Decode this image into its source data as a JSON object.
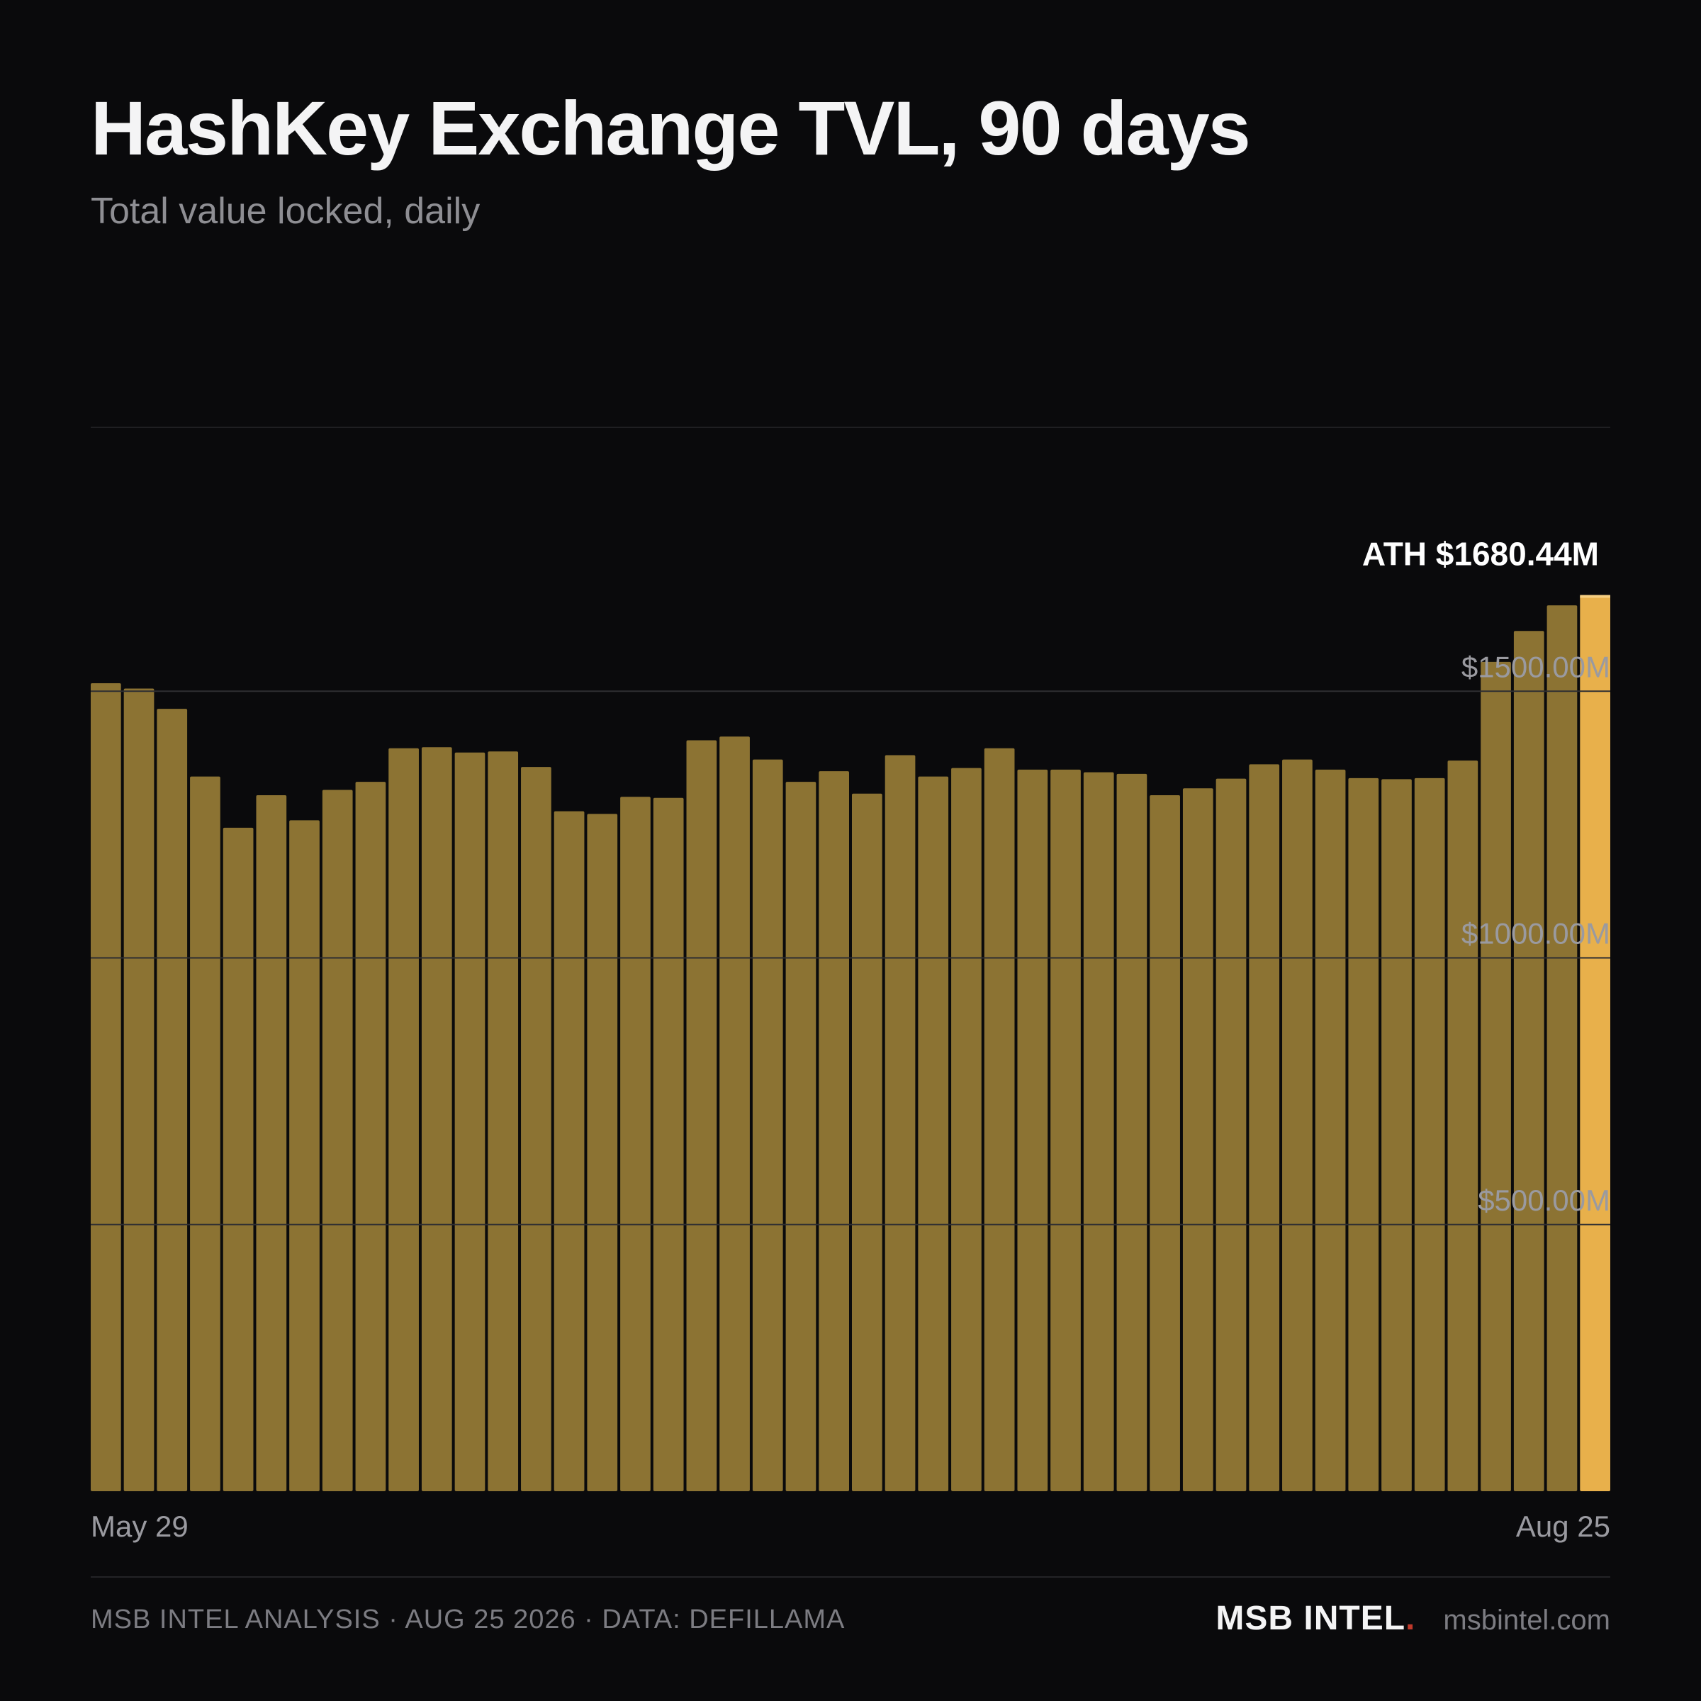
{
  "header": {
    "title": "HashKey Exchange TVL, 90 days",
    "subtitle": "Total value locked, daily"
  },
  "chart_data": {
    "type": "bar",
    "title": "HashKey Exchange TVL, 90 days",
    "subtitle": "Total value locked, daily",
    "unit": "USD millions",
    "ylim": [
      0,
      2000
    ],
    "y_ticks": [
      500,
      1000,
      1500
    ],
    "y_tick_labels": [
      "$500.00M",
      "$1000.00M",
      "$1500.00M"
    ],
    "x_labels": [
      "May 29",
      "Aug 25"
    ],
    "grid": true,
    "values": [
      1515,
      1505,
      1467,
      1340,
      1244,
      1305,
      1258,
      1315,
      1330,
      1393,
      1395,
      1385,
      1387,
      1358,
      1275,
      1270,
      1302,
      1300,
      1408,
      1415,
      1372,
      1330,
      1350,
      1308,
      1380,
      1340,
      1356,
      1393,
      1353,
      1353,
      1348,
      1345,
      1305,
      1318,
      1336,
      1363,
      1372,
      1353,
      1337,
      1335,
      1337,
      1370,
      1555,
      1613,
      1661,
      1680.44
    ],
    "highlight_index": 45,
    "annotation": "ATH $1680.44M",
    "colors": {
      "bar": "#8c7333",
      "highlight": "#e8b04b",
      "highlight_cap": "#f6cf82",
      "gridline": "#2e2e32",
      "tick_label": "#9a9aa0",
      "annotation": "#ffffff"
    }
  },
  "footer": {
    "credit": "MSB INTEL ANALYSIS · AUG 25 2026 · DATA: DEFILLAMA",
    "brand": "MSB INTEL",
    "brand_dot": ".",
    "brand_dot_color": "#c0392b",
    "site": "msbintel.com"
  }
}
